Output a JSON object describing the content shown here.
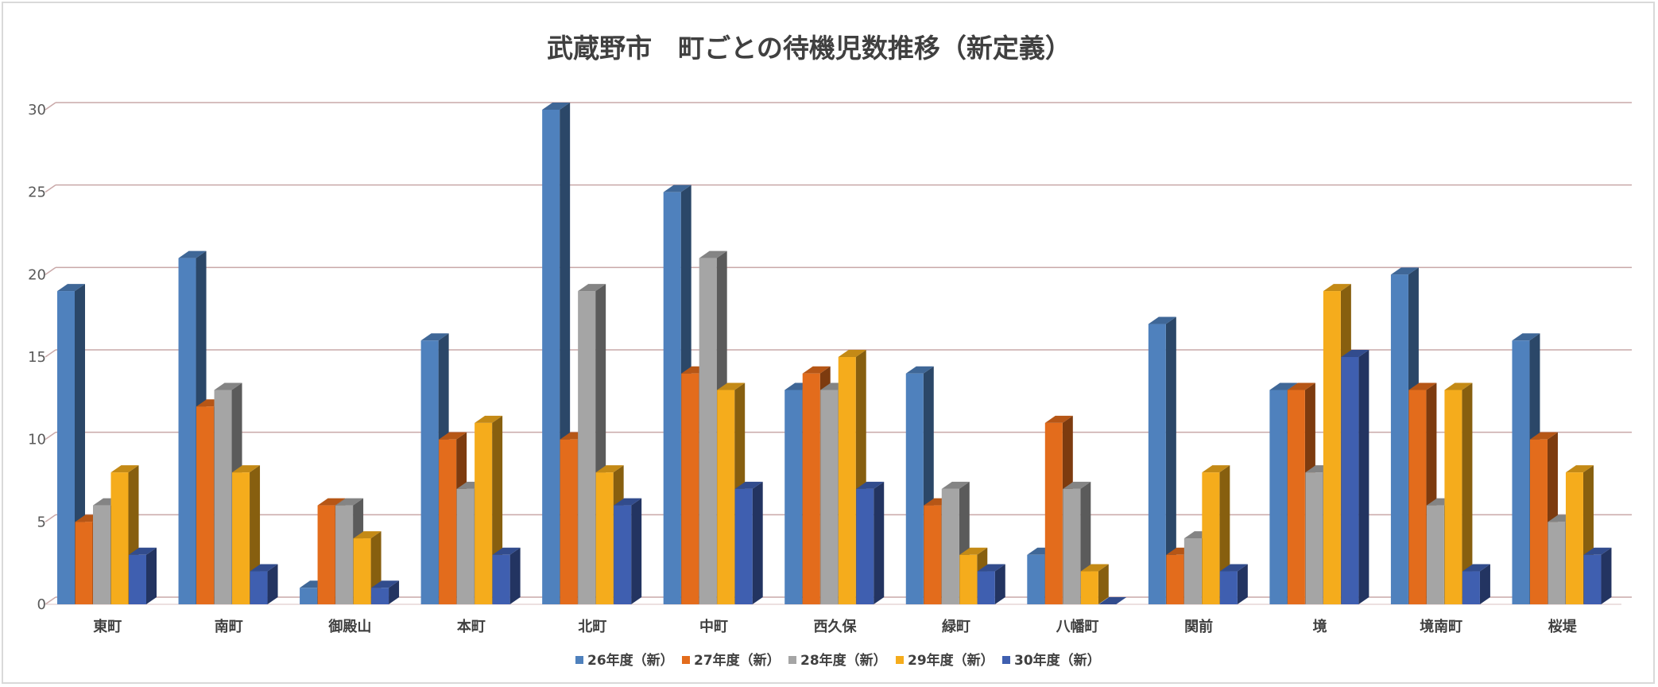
{
  "chart_data": {
    "type": "bar",
    "title": "武蔵野市　町ごとの待機児数推移（新定義）",
    "categories": [
      "東町",
      "南町",
      "御殿山",
      "本町",
      "北町",
      "中町",
      "西久保",
      "緑町",
      "八幡町",
      "関前",
      "境",
      "境南町",
      "桜堤"
    ],
    "series": [
      {
        "name": "26年度（新）",
        "color": "#4f81bd",
        "values": [
          19,
          21,
          1,
          16,
          30,
          25,
          13,
          14,
          3,
          17,
          13,
          20,
          16
        ]
      },
      {
        "name": "27年度（新）",
        "color": "#e36c1c",
        "values": [
          5,
          12,
          6,
          10,
          10,
          14,
          14,
          6,
          11,
          3,
          13,
          13,
          10
        ]
      },
      {
        "name": "28年度（新）",
        "color": "#a5a5a5",
        "values": [
          6,
          13,
          6,
          7,
          19,
          21,
          13,
          7,
          7,
          4,
          8,
          6,
          5
        ]
      },
      {
        "name": "29年度（新）",
        "color": "#f5ac1c",
        "values": [
          8,
          8,
          4,
          11,
          8,
          13,
          15,
          3,
          2,
          8,
          19,
          13,
          8
        ]
      },
      {
        "name": "30年度（新）",
        "color": "#3f5fb0",
        "values": [
          3,
          2,
          1,
          3,
          6,
          7,
          7,
          2,
          0,
          2,
          15,
          2,
          3
        ]
      }
    ],
    "ylim": [
      0,
      30
    ],
    "yticks": [
      0,
      5,
      10,
      15,
      20,
      25,
      30
    ],
    "grid": true,
    "legend": "bottom",
    "xlabel": "",
    "ylabel": ""
  }
}
